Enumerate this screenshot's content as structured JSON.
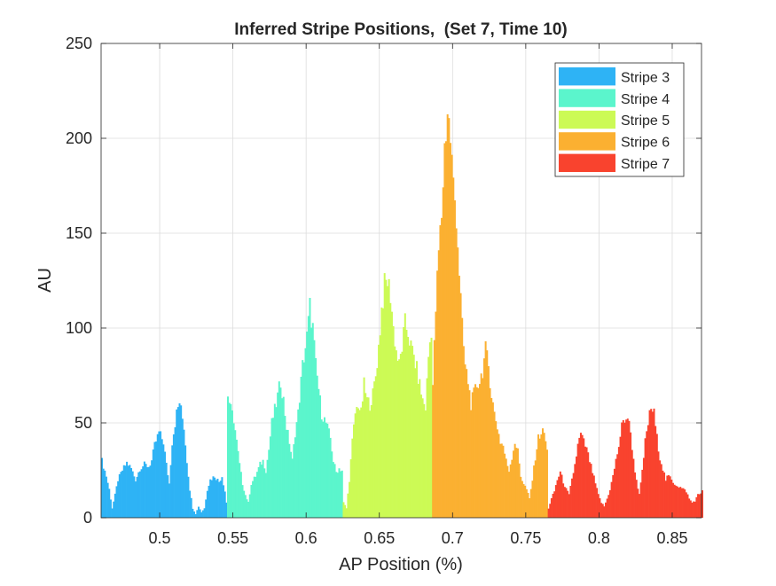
{
  "chart_data": {
    "type": "bar",
    "title": "Inferred Stripe Positions,  (Set 7, Time 10)",
    "xlabel": "AP Position (%)",
    "ylabel": "AU",
    "xlim": [
      0.46,
      0.87
    ],
    "ylim": [
      0,
      250
    ],
    "xticks": [
      0.5,
      0.55,
      0.6,
      0.65,
      0.7,
      0.75,
      0.8,
      0.85
    ],
    "xtick_labels": [
      "0.5",
      "0.55",
      "0.6",
      "0.65",
      "0.7",
      "0.75",
      "0.8",
      "0.85"
    ],
    "yticks": [
      0,
      50,
      100,
      150,
      200,
      250
    ],
    "ytick_labels": [
      "0",
      "50",
      "100",
      "150",
      "200",
      "250"
    ],
    "grid": true,
    "legend_position": "top-right",
    "series": [
      {
        "name": "Stripe 3",
        "color": "#2EB3F5",
        "profile": [
          [
            0.46,
            30
          ],
          [
            0.463,
            22
          ],
          [
            0.465,
            15
          ],
          [
            0.467,
            5
          ],
          [
            0.469,
            12
          ],
          [
            0.471,
            20
          ],
          [
            0.474,
            25
          ],
          [
            0.477,
            29
          ],
          [
            0.48,
            26
          ],
          [
            0.483,
            20
          ],
          [
            0.486,
            26
          ],
          [
            0.489,
            28
          ],
          [
            0.492,
            27
          ],
          [
            0.494,
            30
          ],
          [
            0.496,
            38
          ],
          [
            0.499,
            45
          ],
          [
            0.502,
            40
          ],
          [
            0.504,
            28
          ],
          [
            0.506,
            18
          ],
          [
            0.508,
            40
          ],
          [
            0.511,
            55
          ],
          [
            0.513,
            61
          ],
          [
            0.516,
            48
          ],
          [
            0.518,
            30
          ],
          [
            0.52,
            15
          ],
          [
            0.522,
            5
          ],
          [
            0.524,
            2
          ],
          [
            0.526,
            6
          ],
          [
            0.528,
            3
          ],
          [
            0.53,
            5
          ],
          [
            0.532,
            15
          ],
          [
            0.534,
            20
          ],
          [
            0.537,
            22
          ],
          [
            0.54,
            19
          ],
          [
            0.542,
            22
          ],
          [
            0.544,
            14
          ],
          [
            0.545,
            8
          ]
        ]
      },
      {
        "name": "Stripe 4",
        "color": "#5BF5CC",
        "profile": [
          [
            0.546,
            65
          ],
          [
            0.548,
            57
          ],
          [
            0.55,
            52
          ],
          [
            0.552,
            40
          ],
          [
            0.554,
            28
          ],
          [
            0.556,
            18
          ],
          [
            0.558,
            12
          ],
          [
            0.56,
            8
          ],
          [
            0.562,
            18
          ],
          [
            0.565,
            22
          ],
          [
            0.568,
            28
          ],
          [
            0.57,
            30
          ],
          [
            0.572,
            25
          ],
          [
            0.574,
            36
          ],
          [
            0.576,
            50
          ],
          [
            0.579,
            60
          ],
          [
            0.582,
            72
          ],
          [
            0.584,
            62
          ],
          [
            0.586,
            48
          ],
          [
            0.588,
            40
          ],
          [
            0.59,
            30
          ],
          [
            0.592,
            45
          ],
          [
            0.594,
            55
          ],
          [
            0.597,
            80
          ],
          [
            0.6,
            95
          ],
          [
            0.602,
            111
          ],
          [
            0.604,
            100
          ],
          [
            0.606,
            80
          ],
          [
            0.608,
            68
          ],
          [
            0.61,
            55
          ],
          [
            0.613,
            50
          ],
          [
            0.616,
            42
          ],
          [
            0.618,
            30
          ],
          [
            0.62,
            24
          ],
          [
            0.622,
            26
          ],
          [
            0.624,
            25
          ]
        ]
      },
      {
        "name": "Stripe 5",
        "color": "#CCFA55",
        "profile": [
          [
            0.625,
            8
          ],
          [
            0.627,
            5
          ],
          [
            0.629,
            20
          ],
          [
            0.631,
            40
          ],
          [
            0.633,
            55
          ],
          [
            0.635,
            60
          ],
          [
            0.637,
            55
          ],
          [
            0.639,
            70
          ],
          [
            0.641,
            62
          ],
          [
            0.643,
            60
          ],
          [
            0.645,
            65
          ],
          [
            0.647,
            75
          ],
          [
            0.649,
            90
          ],
          [
            0.651,
            110
          ],
          [
            0.653,
            122
          ],
          [
            0.655,
            125
          ],
          [
            0.657,
            118
          ],
          [
            0.659,
            100
          ],
          [
            0.661,
            88
          ],
          [
            0.663,
            80
          ],
          [
            0.665,
            90
          ],
          [
            0.667,
            102
          ],
          [
            0.669,
            98
          ],
          [
            0.671,
            90
          ],
          [
            0.673,
            85
          ],
          [
            0.675,
            78
          ],
          [
            0.677,
            70
          ],
          [
            0.679,
            62
          ],
          [
            0.681,
            58
          ],
          [
            0.683,
            85
          ],
          [
            0.685,
            100
          ]
        ]
      },
      {
        "name": "Stripe 6",
        "color": "#FBB031",
        "profile": [
          [
            0.686,
            70
          ],
          [
            0.688,
            110
          ],
          [
            0.69,
            140
          ],
          [
            0.692,
            160
          ],
          [
            0.694,
            195
          ],
          [
            0.696,
            215
          ],
          [
            0.698,
            200
          ],
          [
            0.7,
            175
          ],
          [
            0.702,
            160
          ],
          [
            0.704,
            130
          ],
          [
            0.706,
            100
          ],
          [
            0.708,
            80
          ],
          [
            0.71,
            72
          ],
          [
            0.712,
            60
          ],
          [
            0.714,
            65
          ],
          [
            0.716,
            70
          ],
          [
            0.718,
            72
          ],
          [
            0.72,
            78
          ],
          [
            0.722,
            88
          ],
          [
            0.724,
            80
          ],
          [
            0.726,
            65
          ],
          [
            0.728,
            55
          ],
          [
            0.73,
            48
          ],
          [
            0.732,
            40
          ],
          [
            0.734,
            38
          ],
          [
            0.736,
            30
          ],
          [
            0.738,
            25
          ],
          [
            0.74,
            32
          ],
          [
            0.742,
            40
          ],
          [
            0.744,
            35
          ],
          [
            0.746,
            22
          ],
          [
            0.748,
            18
          ],
          [
            0.75,
            15
          ],
          [
            0.752,
            10
          ],
          [
            0.754,
            20
          ],
          [
            0.756,
            32
          ],
          [
            0.758,
            42
          ],
          [
            0.76,
            45
          ],
          [
            0.762,
            45
          ],
          [
            0.764,
            35
          ]
        ]
      },
      {
        "name": "Stripe 7",
        "color": "#F9432E",
        "profile": [
          [
            0.765,
            5
          ],
          [
            0.767,
            10
          ],
          [
            0.769,
            14
          ],
          [
            0.771,
            20
          ],
          [
            0.773,
            24
          ],
          [
            0.775,
            19
          ],
          [
            0.777,
            15
          ],
          [
            0.779,
            12
          ],
          [
            0.781,
            20
          ],
          [
            0.783,
            28
          ],
          [
            0.785,
            38
          ],
          [
            0.787,
            44
          ],
          [
            0.789,
            40
          ],
          [
            0.791,
            36
          ],
          [
            0.793,
            30
          ],
          [
            0.795,
            24
          ],
          [
            0.797,
            18
          ],
          [
            0.799,
            12
          ],
          [
            0.801,
            8
          ],
          [
            0.803,
            6
          ],
          [
            0.805,
            10
          ],
          [
            0.807,
            15
          ],
          [
            0.809,
            22
          ],
          [
            0.811,
            30
          ],
          [
            0.813,
            38
          ],
          [
            0.815,
            48
          ],
          [
            0.817,
            52
          ],
          [
            0.819,
            53
          ],
          [
            0.821,
            45
          ],
          [
            0.823,
            30
          ],
          [
            0.825,
            20
          ],
          [
            0.827,
            12
          ],
          [
            0.829,
            24
          ],
          [
            0.831,
            40
          ],
          [
            0.833,
            50
          ],
          [
            0.835,
            58
          ],
          [
            0.837,
            55
          ],
          [
            0.839,
            42
          ],
          [
            0.841,
            32
          ],
          [
            0.843,
            26
          ],
          [
            0.845,
            20
          ],
          [
            0.847,
            22
          ],
          [
            0.849,
            20
          ],
          [
            0.851,
            18
          ],
          [
            0.853,
            17
          ],
          [
            0.855,
            16
          ],
          [
            0.857,
            15
          ],
          [
            0.859,
            14
          ],
          [
            0.861,
            10
          ],
          [
            0.863,
            8
          ],
          [
            0.865,
            9
          ],
          [
            0.867,
            12
          ],
          [
            0.869,
            13
          ],
          [
            0.87,
            15
          ]
        ]
      }
    ]
  }
}
